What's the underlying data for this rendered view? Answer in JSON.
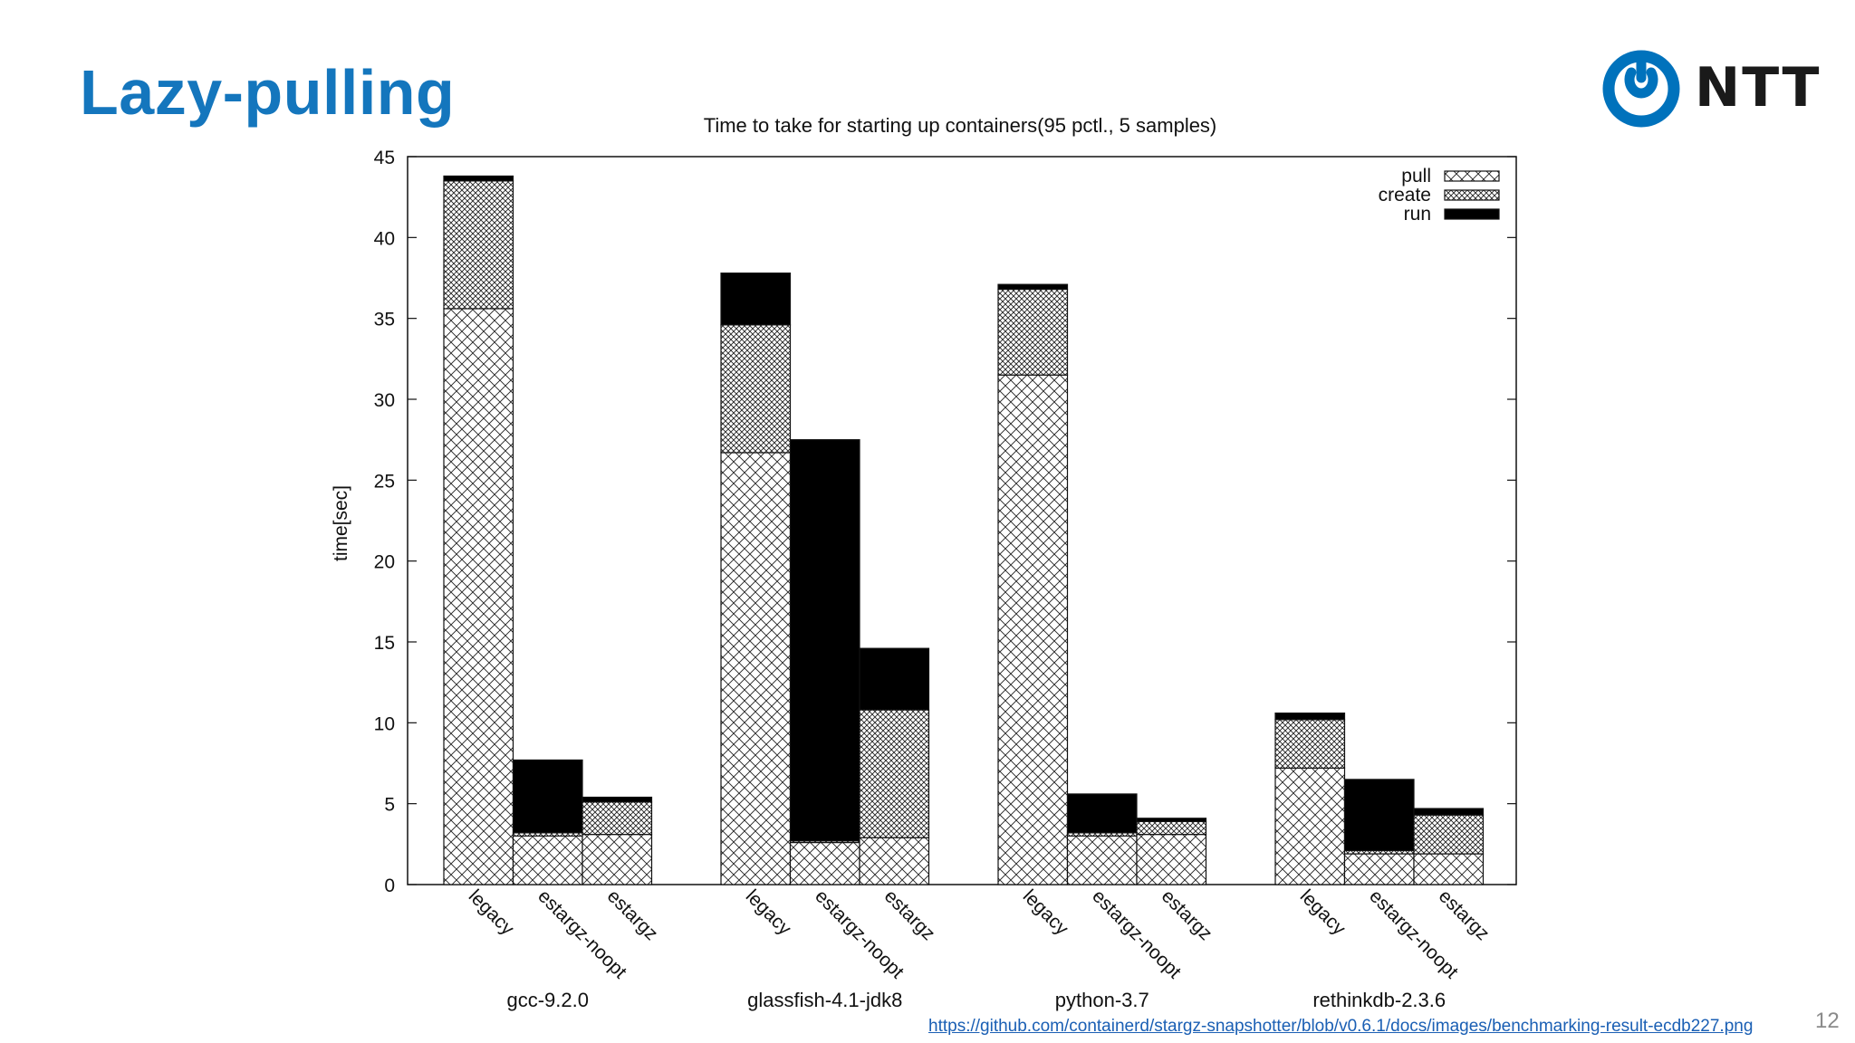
{
  "slide": {
    "title": "Lazy-pulling",
    "logo_text": "NTT",
    "source_link": "https://github.com/containerd/stargz-snapshotter/blob/v0.6.1/docs/images/benchmarking-result-ecdb227.png",
    "page_number": "12"
  },
  "colors": {
    "title": "#1476bd",
    "logo": "#0072bc",
    "link": "#1a5fb4"
  },
  "chart_data": {
    "type": "bar",
    "stacked": true,
    "title": "Time to take for starting up containers(95 pctl., 5 samples)",
    "xlabel": "",
    "ylabel": "time[sec]",
    "ylim": [
      0,
      45
    ],
    "yticks": [
      0,
      5,
      10,
      15,
      20,
      25,
      30,
      35,
      40,
      45
    ],
    "grid": false,
    "legend_position": "top-right",
    "groups": [
      "gcc-9.2.0",
      "glassfish-4.1-jdk8",
      "python-3.7",
      "rethinkdb-2.3.6"
    ],
    "bar_labels": [
      "legacy",
      "estargz-noopt",
      "estargz"
    ],
    "series": [
      {
        "name": "pull",
        "pattern": "sparse-crosshatch",
        "values": [
          [
            35.6,
            3.0,
            3.1
          ],
          [
            26.7,
            2.6,
            2.9
          ],
          [
            31.5,
            3.0,
            3.1
          ],
          [
            7.2,
            1.9,
            1.9
          ]
        ]
      },
      {
        "name": "create",
        "pattern": "dense-crosshatch",
        "values": [
          [
            7.9,
            0.2,
            2.0
          ],
          [
            7.9,
            0.1,
            7.9
          ],
          [
            5.3,
            0.2,
            0.8
          ],
          [
            3.0,
            0.2,
            2.4
          ]
        ]
      },
      {
        "name": "run",
        "pattern": "solid-black",
        "values": [
          [
            0.3,
            4.5,
            0.3
          ],
          [
            3.2,
            24.8,
            3.8
          ],
          [
            0.3,
            2.4,
            0.2
          ],
          [
            0.4,
            4.4,
            0.4
          ]
        ]
      }
    ]
  }
}
